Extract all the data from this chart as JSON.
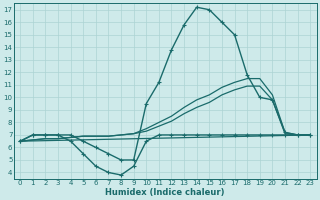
{
  "title": "",
  "xlabel": "Humidex (Indice chaleur)",
  "ylabel": "",
  "bg_color": "#ceeaea",
  "line_color": "#1a6b6b",
  "grid_color": "#acd4d4",
  "xlim": [
    -0.5,
    23.5
  ],
  "ylim": [
    3.5,
    17.5
  ],
  "xticks": [
    0,
    1,
    2,
    3,
    4,
    5,
    6,
    7,
    8,
    9,
    10,
    11,
    12,
    13,
    14,
    15,
    16,
    17,
    18,
    19,
    20,
    21,
    22,
    23
  ],
  "yticks": [
    4,
    5,
    6,
    7,
    8,
    9,
    10,
    11,
    12,
    13,
    14,
    15,
    16,
    17
  ],
  "series": [
    {
      "x": [
        0,
        1,
        2,
        3,
        4,
        5,
        6,
        7,
        8,
        9,
        10,
        11,
        12,
        13,
        14,
        15,
        16,
        17,
        18,
        19,
        20,
        21,
        22,
        23
      ],
      "y": [
        6.5,
        7.0,
        7.0,
        7.0,
        7.0,
        6.5,
        6.0,
        5.5,
        5.0,
        5.0,
        9.5,
        11.2,
        13.8,
        15.8,
        17.2,
        17.0,
        16.0,
        15.0,
        11.8,
        10.0,
        9.8,
        7.2,
        7.0,
        7.0
      ],
      "marker": true,
      "linewidth": 1.0
    },
    {
      "x": [
        0,
        1,
        2,
        3,
        4,
        5,
        6,
        7,
        8,
        9,
        10,
        11,
        12,
        13,
        14,
        15,
        16,
        17,
        18,
        19,
        20,
        21,
        22,
        23
      ],
      "y": [
        6.5,
        7.0,
        7.0,
        7.0,
        6.5,
        5.5,
        4.5,
        4.0,
        3.8,
        4.5,
        6.5,
        7.0,
        7.0,
        7.0,
        7.0,
        7.0,
        7.0,
        7.0,
        7.0,
        7.0,
        7.0,
        7.0,
        7.0,
        7.0
      ],
      "marker": true,
      "linewidth": 1.0
    },
    {
      "x": [
        0,
        1,
        2,
        3,
        4,
        5,
        6,
        7,
        8,
        9,
        10,
        11,
        12,
        13,
        14,
        15,
        16,
        17,
        18,
        19,
        20,
        21,
        22,
        23
      ],
      "y": [
        6.5,
        6.6,
        6.7,
        6.7,
        6.8,
        6.9,
        6.9,
        6.9,
        7.0,
        7.1,
        7.5,
        8.0,
        8.5,
        9.2,
        9.8,
        10.2,
        10.8,
        11.2,
        11.5,
        11.5,
        10.2,
        7.2,
        7.0,
        7.0
      ],
      "marker": false,
      "linewidth": 0.9
    },
    {
      "x": [
        0,
        23
      ],
      "y": [
        6.5,
        7.0
      ],
      "marker": false,
      "linewidth": 0.9
    },
    {
      "x": [
        0,
        1,
        2,
        3,
        4,
        5,
        6,
        7,
        8,
        9,
        10,
        11,
        12,
        13,
        14,
        15,
        16,
        17,
        18,
        19,
        20,
        21,
        22,
        23
      ],
      "y": [
        6.5,
        6.6,
        6.7,
        6.7,
        6.8,
        6.9,
        6.9,
        6.9,
        7.0,
        7.1,
        7.3,
        7.7,
        8.1,
        8.7,
        9.2,
        9.6,
        10.2,
        10.6,
        10.9,
        10.9,
        9.8,
        7.1,
        7.0,
        7.0
      ],
      "marker": false,
      "linewidth": 0.9
    }
  ]
}
